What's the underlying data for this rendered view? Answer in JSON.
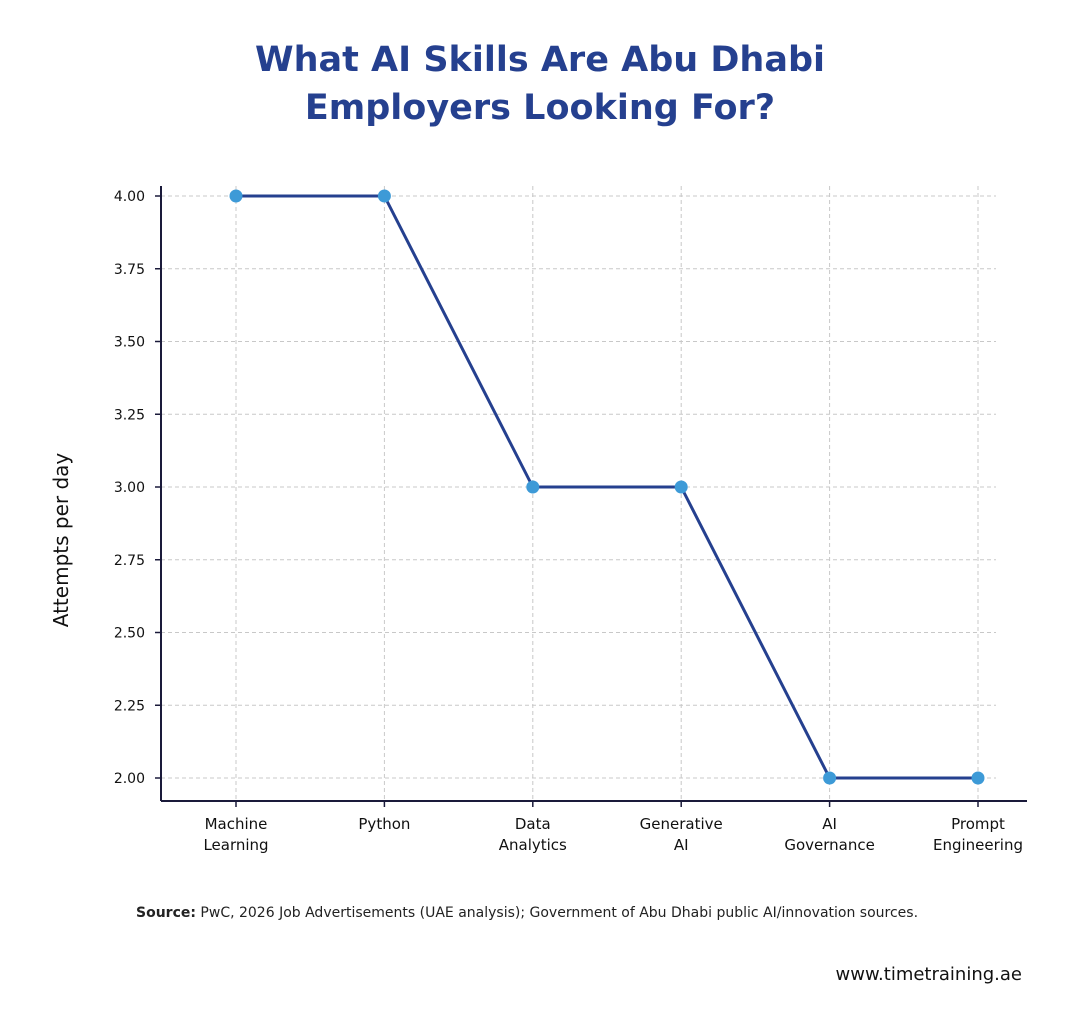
{
  "chart_data": {
    "type": "line",
    "title_lines": [
      "What AI Skills Are Abu Dhabi",
      "Employers Looking For?"
    ],
    "xlabel": "",
    "ylabel": "Attempts per day",
    "categories": [
      [
        "Machine",
        "Learning"
      ],
      [
        "Python"
      ],
      [
        "Data",
        "Analytics"
      ],
      [
        "Generative",
        "AI"
      ],
      [
        "AI",
        "Governance"
      ],
      [
        "Prompt",
        "Engineering"
      ]
    ],
    "values": [
      4.0,
      4.0,
      3.0,
      3.0,
      2.0,
      2.0
    ],
    "ylim": [
      2.0,
      4.0
    ],
    "yticks": [
      "2.00",
      "2.25",
      "2.50",
      "2.75",
      "3.00",
      "3.25",
      "3.50",
      "3.75",
      "4.00"
    ],
    "grid": true,
    "colors": {
      "line": "#25408f",
      "marker": "#3d9ad7",
      "grid": "#c8c8c8",
      "axis": "#1a1a3a"
    }
  },
  "footer": {
    "source_label": "Source:",
    "source_text": "PwC, 2026 Job Advertisements (UAE analysis); Government of Abu Dhabi public AI/innovation sources.",
    "website": "www.timetraining.ae"
  }
}
